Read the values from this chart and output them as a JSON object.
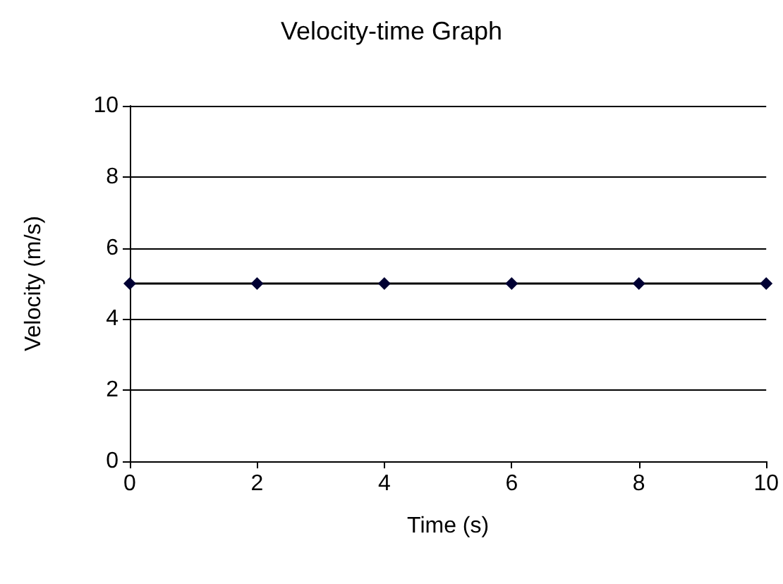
{
  "chart_data": {
    "type": "line",
    "title": "Velocity-time Graph",
    "xlabel": "Time (s)",
    "ylabel": "Velocity (m/s)",
    "x": [
      0,
      2,
      4,
      6,
      8,
      10
    ],
    "series": [
      {
        "color": "#000033",
        "values": [
          5,
          5,
          5,
          5,
          5,
          5
        ]
      }
    ],
    "xlim": [
      0,
      10
    ],
    "xticks": [
      0,
      2,
      4,
      6,
      8,
      10
    ],
    "ylim": [
      0,
      10
    ],
    "yticks": [
      0,
      2,
      4,
      6,
      8,
      10
    ],
    "grid": "y",
    "marker": "diamond",
    "line_style": "solid"
  }
}
